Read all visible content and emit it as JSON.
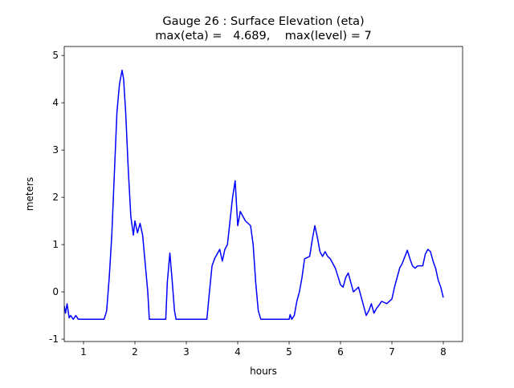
{
  "chart_data": {
    "type": "line",
    "title": "Gauge 26 : Surface Elevation (eta)",
    "subtitle": "max(eta) =   4.689,    max(level) = 7",
    "xlabel": "hours",
    "ylabel": "meters",
    "xlim": [
      0.625,
      8.375
    ],
    "ylim": [
      -1.05,
      5.19
    ],
    "xticks": [
      1,
      2,
      3,
      4,
      5,
      6,
      7,
      8
    ],
    "yticks": [
      -1,
      0,
      1,
      2,
      3,
      4,
      5
    ],
    "grid": false,
    "series": [
      {
        "name": "eta",
        "color": "#0000ff",
        "x": [
          0.625,
          0.65,
          0.68,
          0.72,
          0.75,
          0.8,
          0.85,
          0.9,
          1.0,
          1.4,
          1.45,
          1.5,
          1.55,
          1.6,
          1.65,
          1.7,
          1.75,
          1.78,
          1.82,
          1.87,
          1.92,
          1.97,
          2.0,
          2.05,
          2.1,
          2.15,
          2.2,
          2.25,
          2.28,
          2.6,
          2.63,
          2.68,
          2.72,
          2.77,
          2.8,
          3.4,
          3.45,
          3.5,
          3.55,
          3.6,
          3.65,
          3.7,
          3.75,
          3.8,
          3.85,
          3.9,
          3.95,
          4.0,
          4.05,
          4.1,
          4.15,
          4.25,
          4.3,
          4.35,
          4.4,
          4.45,
          5.0,
          5.02,
          5.05,
          5.1,
          5.15,
          5.2,
          5.25,
          5.3,
          5.4,
          5.45,
          5.5,
          5.55,
          5.6,
          5.65,
          5.7,
          5.75,
          5.8,
          5.9,
          6.0,
          6.05,
          6.1,
          6.15,
          6.2,
          6.25,
          6.3,
          6.35,
          6.4,
          6.45,
          6.5,
          6.55,
          6.6,
          6.65,
          6.7,
          6.75,
          6.8,
          6.9,
          7.0,
          7.05,
          7.1,
          7.15,
          7.2,
          7.3,
          7.35,
          7.4,
          7.45,
          7.5,
          7.6,
          7.65,
          7.7,
          7.75,
          7.8,
          7.85,
          7.9,
          7.95,
          8.0
        ],
        "values": [
          -0.3,
          -0.45,
          -0.25,
          -0.55,
          -0.5,
          -0.58,
          -0.5,
          -0.58,
          -0.58,
          -0.58,
          -0.4,
          0.3,
          1.2,
          2.5,
          3.8,
          4.4,
          4.689,
          4.5,
          3.8,
          2.6,
          1.6,
          1.2,
          1.5,
          1.25,
          1.45,
          1.2,
          0.6,
          0.0,
          -0.58,
          -0.58,
          0.2,
          0.82,
          0.3,
          -0.4,
          -0.58,
          -0.58,
          0.0,
          0.55,
          0.7,
          0.8,
          0.9,
          0.65,
          0.9,
          1.0,
          1.5,
          2.0,
          2.35,
          1.4,
          1.7,
          1.6,
          1.5,
          1.4,
          1.0,
          0.2,
          -0.4,
          -0.58,
          -0.58,
          -0.48,
          -0.58,
          -0.5,
          -0.2,
          0.0,
          0.3,
          0.7,
          0.75,
          1.1,
          1.4,
          1.15,
          0.85,
          0.75,
          0.85,
          0.75,
          0.7,
          0.5,
          0.15,
          0.1,
          0.3,
          0.4,
          0.2,
          0.0,
          0.05,
          0.1,
          -0.1,
          -0.3,
          -0.5,
          -0.4,
          -0.25,
          -0.45,
          -0.35,
          -0.28,
          -0.2,
          -0.25,
          -0.15,
          0.1,
          0.3,
          0.5,
          0.6,
          0.88,
          0.7,
          0.55,
          0.5,
          0.55,
          0.55,
          0.8,
          0.9,
          0.85,
          0.65,
          0.5,
          0.25,
          0.1,
          -0.12
        ]
      }
    ]
  }
}
